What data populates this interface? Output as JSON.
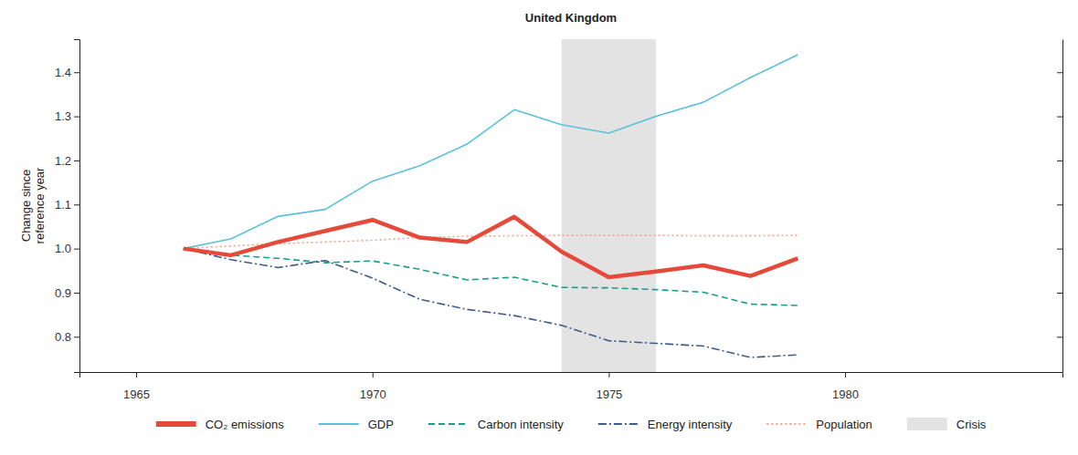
{
  "chart_data": {
    "type": "line",
    "title": "United Kingdom",
    "y_label": "Change since reference year",
    "x": [
      1966,
      1967,
      1968,
      1969,
      1970,
      1971,
      1972,
      1973,
      1974,
      1975,
      1976,
      1977,
      1978,
      1979
    ],
    "xlim": [
      1963.8,
      1984.6
    ],
    "xticks": [
      1965,
      1970,
      1975,
      1980
    ],
    "ylim": [
      0.72,
      1.475
    ],
    "yticks": [
      0.8,
      0.9,
      {
        "value": 1.0,
        "label": "1.0"
      },
      1.1,
      1.2,
      1.3,
      1.4
    ],
    "legend": "bottom",
    "crisis": {
      "name": "Crisis",
      "start": 1974,
      "end": 1976,
      "color": "#e3e3e3"
    },
    "series": [
      {
        "name": "CO₂ emissions",
        "color": "#e5493a",
        "line_style": "solid",
        "values": [
          1.0,
          0.985,
          1.015,
          1.04,
          1.065,
          1.025,
          1.015,
          1.072,
          0.993,
          0.935,
          0.948,
          0.962,
          0.938,
          0.978
        ]
      },
      {
        "name": "GDP",
        "color": "#5bc0d8",
        "line_style": "solid",
        "values": [
          1.0,
          1.022,
          1.073,
          1.089,
          1.153,
          1.188,
          1.237,
          1.315,
          1.281,
          1.262,
          1.3,
          1.332,
          1.388,
          1.44
        ]
      },
      {
        "name": "Carbon intensity",
        "color": "#1a9c88",
        "line_style": "dashed",
        "values": [
          1.0,
          0.985,
          0.978,
          0.968,
          0.972,
          0.953,
          0.929,
          0.935,
          0.912,
          0.911,
          0.907,
          0.901,
          0.874,
          0.871
        ]
      },
      {
        "name": "Energy intensity",
        "color": "#3d5a8a",
        "line_style": "dashdot",
        "values": [
          1.0,
          0.975,
          0.957,
          0.973,
          0.933,
          0.885,
          0.862,
          0.848,
          0.826,
          0.791,
          0.785,
          0.779,
          0.753,
          0.759
        ]
      },
      {
        "name": "Population",
        "color": "#f4a08a",
        "line_style": "dotted",
        "values": [
          1.0,
          1.006,
          1.011,
          1.015,
          1.019,
          1.025,
          1.028,
          1.029,
          1.03,
          1.03,
          1.03,
          1.029,
          1.029,
          1.03
        ]
      }
    ]
  }
}
